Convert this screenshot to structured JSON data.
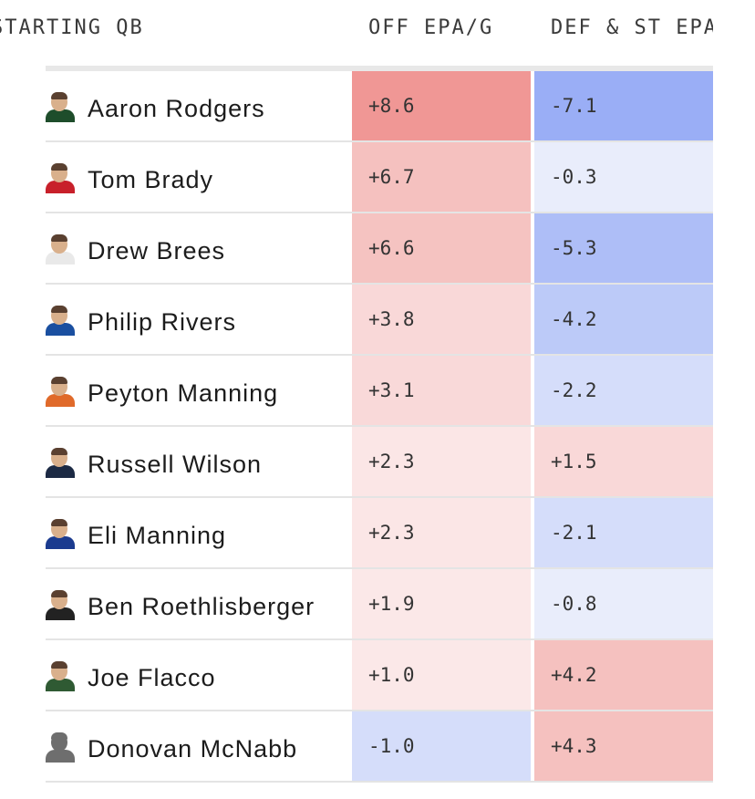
{
  "header": {
    "qb_label": "STARTING QB",
    "off_label": "OFF EPA/G",
    "def_label": "DEF & ST EPA"
  },
  "rows": [
    {
      "name": "Aaron Rodgers",
      "off": "+8.6",
      "def": "-7.1",
      "off_color": "#f09795",
      "def_color": "#9aaef6",
      "jersey": "#1e4d2b"
    },
    {
      "name": "Tom Brady",
      "off": "+6.7",
      "def": "-0.3",
      "off_color": "#f5c1bf",
      "def_color": "#e9edfb",
      "jersey": "#c8202a"
    },
    {
      "name": "Drew Brees",
      "off": "+6.6",
      "def": "-5.3",
      "off_color": "#f5c3c1",
      "def_color": "#aebef7",
      "jersey": "#e9e9e9"
    },
    {
      "name": "Philip Rivers",
      "off": "+3.8",
      "def": "-4.2",
      "off_color": "#f9d8d8",
      "def_color": "#bccaf8",
      "jersey": "#1a4fa0"
    },
    {
      "name": "Peyton Manning",
      "off": "+3.1",
      "def": "-2.2",
      "off_color": "#f9d9d9",
      "def_color": "#d5ddfa",
      "jersey": "#e06a2a"
    },
    {
      "name": "Russell Wilson",
      "off": "+2.3",
      "def": "+1.5",
      "off_color": "#fbe6e6",
      "def_color": "#f9d8d8",
      "jersey": "#1c2a44"
    },
    {
      "name": "Eli Manning",
      "off": "+2.3",
      "def": "-2.1",
      "off_color": "#fbe6e6",
      "def_color": "#d5ddfa",
      "jersey": "#1b3b8f"
    },
    {
      "name": "Ben Roethlisberger",
      "off": "+1.9",
      "def": "-0.8",
      "off_color": "#fbe8e8",
      "def_color": "#e9edfb",
      "jersey": "#222222"
    },
    {
      "name": "Joe Flacco",
      "off": "+1.0",
      "def": "+4.2",
      "off_color": "#fbe8e8",
      "def_color": "#f5c1bf",
      "jersey": "#2f5a33"
    },
    {
      "name": "Donovan McNabb",
      "off": "-1.0",
      "def": "+4.3",
      "off_color": "#d5ddfa",
      "def_color": "#f5c1bf",
      "jersey": "#6e6e6e",
      "silhouette": true
    }
  ]
}
